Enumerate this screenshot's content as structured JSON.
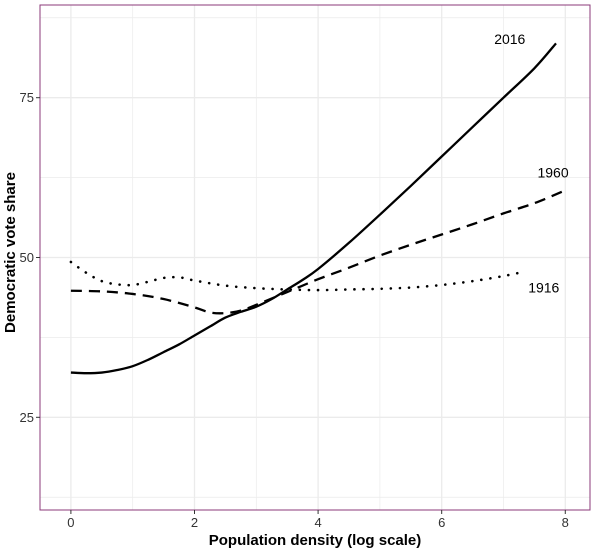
{
  "chart_data": {
    "type": "line",
    "title": "",
    "xlabel": "Population density (log scale)",
    "ylabel": "Democratic vote share",
    "xlim": [
      -0.5,
      8.4
    ],
    "ylim": [
      10.5,
      89.5
    ],
    "x_ticks": [
      0,
      2,
      4,
      6,
      8
    ],
    "y_ticks": [
      25,
      50,
      75
    ],
    "grid": true,
    "legend": "none (series labeled directly at line ends)",
    "colors": {
      "line": "#000000",
      "grid": "#ebebeb",
      "panel_border": "#8b3a7a",
      "background": "#ffffff"
    },
    "series": [
      {
        "name": "2016",
        "style": "solid",
        "x": [
          0,
          0.25,
          0.5,
          0.75,
          1,
          1.25,
          1.5,
          1.75,
          2,
          2.25,
          2.5,
          2.75,
          3,
          3.25,
          3.5,
          3.75,
          4,
          4.5,
          5,
          5.5,
          6,
          6.5,
          7,
          7.5,
          7.85
        ],
        "y": [
          32,
          31.9,
          32,
          32.4,
          33,
          34,
          35.2,
          36.4,
          37.8,
          39.2,
          40.6,
          41.5,
          42.3,
          43.5,
          45,
          46.5,
          48.2,
          52.3,
          56.7,
          61.2,
          65.8,
          70.4,
          75,
          79.6,
          83.5
        ]
      },
      {
        "name": "1960",
        "style": "dashed",
        "x": [
          0,
          0.5,
          1,
          1.5,
          2,
          2.25,
          2.5,
          2.75,
          3,
          3.5,
          4,
          4.5,
          5,
          5.5,
          6,
          6.5,
          7,
          7.5,
          7.95
        ],
        "y": [
          44.8,
          44.7,
          44.3,
          43.5,
          42.2,
          41.4,
          41.3,
          41.7,
          42.6,
          44.6,
          46.6,
          48.4,
          50.3,
          52,
          53.6,
          55.2,
          56.9,
          58.5,
          60.3
        ]
      },
      {
        "name": "1916",
        "style": "dotted",
        "x": [
          0,
          0.25,
          0.5,
          0.75,
          1,
          1.25,
          1.5,
          1.75,
          2,
          2.5,
          3,
          3.5,
          4,
          4.5,
          5,
          5.5,
          6,
          6.5,
          7,
          7.35
        ],
        "y": [
          49.3,
          47.6,
          46.3,
          45.8,
          45.7,
          46.2,
          46.8,
          46.9,
          46.4,
          45.6,
          45.2,
          45,
          44.9,
          45,
          45.1,
          45.3,
          45.7,
          46.3,
          47.1,
          47.8
        ]
      }
    ],
    "annotations": [
      {
        "text": "2016",
        "x": 6.85,
        "y": 84.2,
        "anchor": "start"
      },
      {
        "text": "1960",
        "x": 7.55,
        "y": 63.3,
        "anchor": "start"
      },
      {
        "text": "1916",
        "x": 7.4,
        "y": 45.3,
        "anchor": "start"
      }
    ]
  }
}
